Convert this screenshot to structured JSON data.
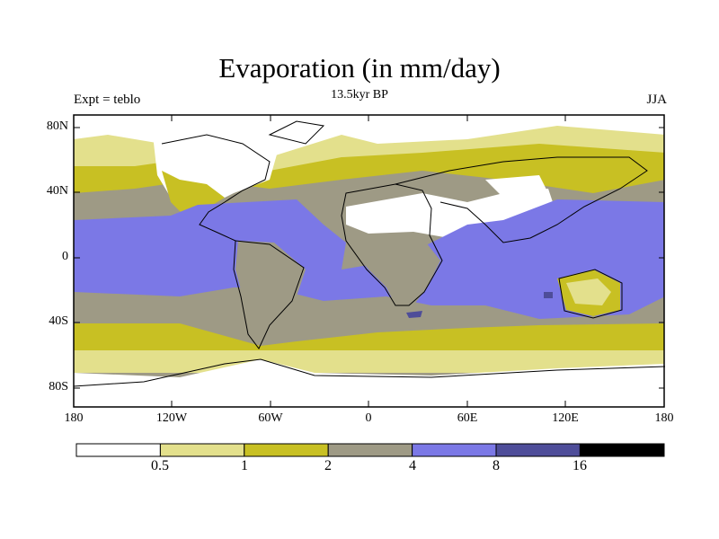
{
  "title": "Evaporation (in mm/day)",
  "subtitle": "13.5kyr BP",
  "left_label": "Expt = teblo",
  "right_label": "JJA",
  "lat_labels": [
    "80N",
    "40N",
    "0",
    "40S",
    "80S"
  ],
  "lon_labels": [
    "180",
    "120W",
    "60W",
    "0",
    "60E",
    "120E",
    "180"
  ],
  "colorbar": {
    "colors": [
      "#ffffff",
      "#e3e08c",
      "#c8c023",
      "#9e9a85",
      "#7b78e6",
      "#4e4d99",
      "#000000"
    ],
    "labels": [
      "0.5",
      "1",
      "2",
      "4",
      "8",
      "16"
    ]
  }
}
